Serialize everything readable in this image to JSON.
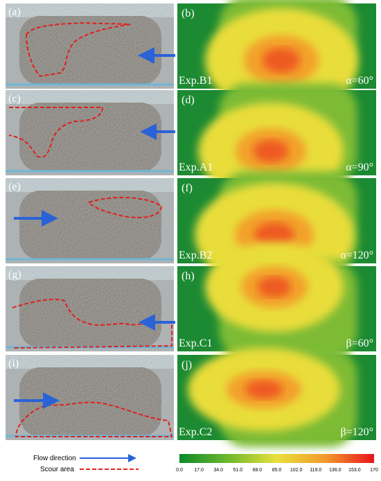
{
  "panels": [
    {
      "photo_label": "(a)",
      "map_label": "(b)",
      "experiment": "Exp.B1",
      "angle": "α=60°"
    },
    {
      "photo_label": "(c)",
      "map_label": "(d)",
      "experiment": "Exp.A1",
      "angle": "α=90°"
    },
    {
      "photo_label": "(e)",
      "map_label": "(f)",
      "experiment": "Exp.B2",
      "angle": "α=120°"
    },
    {
      "photo_label": "(g)",
      "map_label": "(h)",
      "experiment": "Exp.C1",
      "angle": "β=60°"
    },
    {
      "photo_label": "(i)",
      "map_label": "(j)",
      "experiment": "Exp.C2",
      "angle": "β=120°"
    }
  ],
  "legend": {
    "flow": "Flow direction",
    "scour": "Scour area"
  },
  "colorbar": {
    "ticks": [
      "0.0",
      "17.0",
      "34.0",
      "51.0",
      "68.0",
      "85.0",
      "102.0",
      "119.0",
      "136.0",
      "153.0",
      "170"
    ]
  }
}
